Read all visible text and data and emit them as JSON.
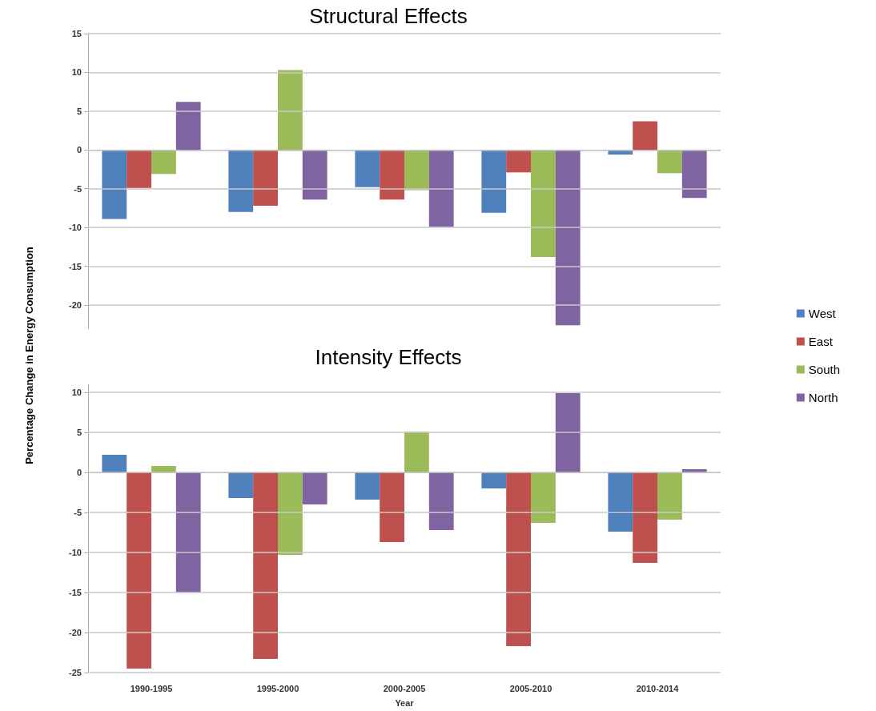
{
  "chart_data": [
    {
      "type": "bar",
      "title": "Structural Effects",
      "ylabel": "Percentage Change in Energy Consumption",
      "categories": [
        null,
        null,
        null,
        null,
        null
      ],
      "series": [
        {
          "name": "West",
          "color": "#4f81bd",
          "values": [
            -8.9,
            -8.0,
            -4.8,
            -8.1,
            -0.6
          ]
        },
        {
          "name": "East",
          "color": "#c0504d",
          "values": [
            -4.9,
            -7.2,
            -6.4,
            -2.9,
            3.7
          ]
        },
        {
          "name": "South",
          "color": "#9bbb59",
          "values": [
            -3.1,
            10.3,
            -5.2,
            -13.8,
            -3.0
          ]
        },
        {
          "name": "North",
          "color": "#8064a2",
          "values": [
            6.2,
            -6.4,
            -9.9,
            -22.6,
            -6.2
          ]
        }
      ],
      "ylim": [
        -23,
        15
      ],
      "yticks": [
        -20,
        -15,
        -10,
        -5,
        0,
        5,
        10,
        15
      ],
      "grid": "y",
      "legend": "right",
      "tick_labels": "y"
    },
    {
      "type": "bar",
      "title": "Intensity Effects",
      "xlabel": "Year",
      "categories": [
        "1990-1995",
        "1995-2000",
        "2000-2005",
        "2005-2010",
        "2010-2014"
      ],
      "series": [
        {
          "color": "#4f81bd",
          "values": [
            2.2,
            -3.2,
            -3.4,
            -2.0,
            -7.4
          ]
        },
        {
          "color": "#c0504d",
          "values": [
            -24.5,
            -23.3,
            -8.7,
            -21.7,
            -11.3
          ]
        },
        {
          "color": "#9bbb59",
          "values": [
            0.8,
            -10.3,
            5.1,
            -6.3,
            -5.9
          ]
        },
        {
          "color": "#8064a2",
          "values": [
            -15.0,
            -4.0,
            -7.2,
            9.9,
            0.4
          ]
        }
      ],
      "ylim": [
        -25,
        11
      ],
      "yticks": [
        -25,
        -20,
        -15,
        -10,
        -5,
        0,
        5,
        10
      ],
      "grid": "y"
    }
  ]
}
